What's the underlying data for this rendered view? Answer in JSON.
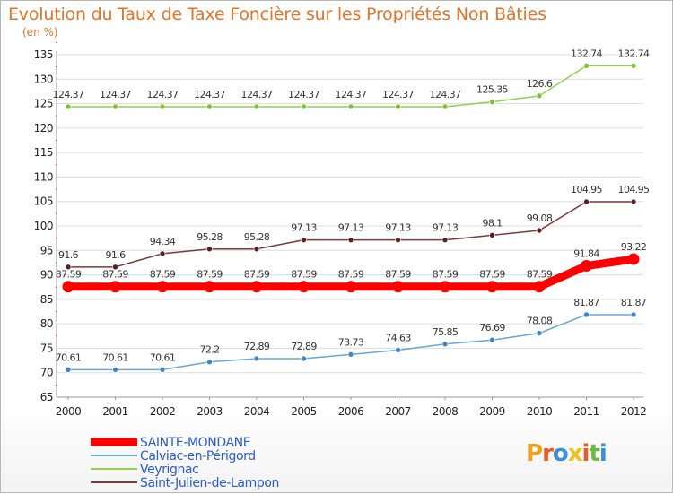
{
  "title": "Evolution du Taux de Taxe Foncière sur les Propriétés Non Bâties",
  "unit": "(en %)",
  "logo": "Proxiti",
  "chart_data": {
    "type": "line",
    "title": "Evolution du Taux de Taxe Foncière sur les Propriétés Non Bâties",
    "ylabel": "(en %)",
    "xlabel": "",
    "ylim": [
      65,
      135
    ],
    "yticks": [
      65,
      70,
      75,
      80,
      85,
      90,
      95,
      100,
      105,
      110,
      115,
      120,
      125,
      130,
      135
    ],
    "categories": [
      "2000",
      "2001",
      "2002",
      "2003",
      "2004",
      "2005",
      "2006",
      "2007",
      "2008",
      "2009",
      "2010",
      "2011",
      "2012"
    ],
    "grid": "horizontal",
    "legend_position": "bottom-left",
    "series": [
      {
        "name": "Veyrignac",
        "color": "#8fd14f",
        "point_color": "#7cc23a",
        "width": 1.5,
        "values": [
          124.37,
          124.37,
          124.37,
          124.37,
          124.37,
          124.37,
          124.37,
          124.37,
          124.37,
          125.35,
          126.6,
          132.74,
          132.74
        ],
        "labels": [
          "124.37",
          "124.37",
          "124.37",
          "124.37",
          "124.37",
          "124.37",
          "124.37",
          "124.37",
          "124.37",
          "125.35",
          "126.6",
          "132.74",
          "132.74"
        ]
      },
      {
        "name": "Saint-Julien-de-Lampon",
        "color": "#7a3a3a",
        "point_color": "#5a1f1f",
        "width": 1.5,
        "values": [
          91.6,
          91.6,
          94.34,
          95.28,
          95.28,
          97.13,
          97.13,
          97.13,
          97.13,
          98.1,
          99.08,
          104.95,
          104.95
        ],
        "labels": [
          "91.6",
          "91.6",
          "94.34",
          "95.28",
          "95.28",
          "97.13",
          "97.13",
          "97.13",
          "97.13",
          "98.1",
          "99.08",
          "104.95",
          "104.95"
        ]
      },
      {
        "name": "SAINTE-MONDANE",
        "color": "#ff0000",
        "point_color": "#ff0000",
        "width": 9,
        "values": [
          87.59,
          87.59,
          87.59,
          87.59,
          87.59,
          87.59,
          87.59,
          87.59,
          87.59,
          87.59,
          87.59,
          91.84,
          93.22
        ],
        "labels": [
          "87.59",
          "87.59",
          "87.59",
          "87.59",
          "87.59",
          "87.59",
          "87.59",
          "87.59",
          "87.59",
          "87.59",
          "87.59",
          "91.84",
          "93.22"
        ]
      },
      {
        "name": "Calviac-en-Périgord",
        "color": "#6aa6d6",
        "point_color": "#3f86c4",
        "width": 1.5,
        "values": [
          70.61,
          70.61,
          70.61,
          72.2,
          72.89,
          72.89,
          73.73,
          74.63,
          75.85,
          76.69,
          78.08,
          81.87,
          81.87
        ],
        "labels": [
          "70.61",
          "70.61",
          "70.61",
          "72.2",
          "72.89",
          "72.89",
          "73.73",
          "74.63",
          "75.85",
          "76.69",
          "78.08",
          "81.87",
          "81.87"
        ]
      }
    ],
    "legend": [
      {
        "name": "SAINTE-MONDANE",
        "color": "#ff0000",
        "text_color": "#2a5dc9"
      },
      {
        "name": "Calviac-en-Périgord",
        "color": "#6aa6d6",
        "text_color": "#2a5dc9"
      },
      {
        "name": "Veyrignac",
        "color": "#8fd14f",
        "text_color": "#2a5dc9"
      },
      {
        "name": "Saint-Julien-de-Lampon",
        "color": "#7a3a3a",
        "text_color": "#2a5dc9"
      }
    ]
  }
}
